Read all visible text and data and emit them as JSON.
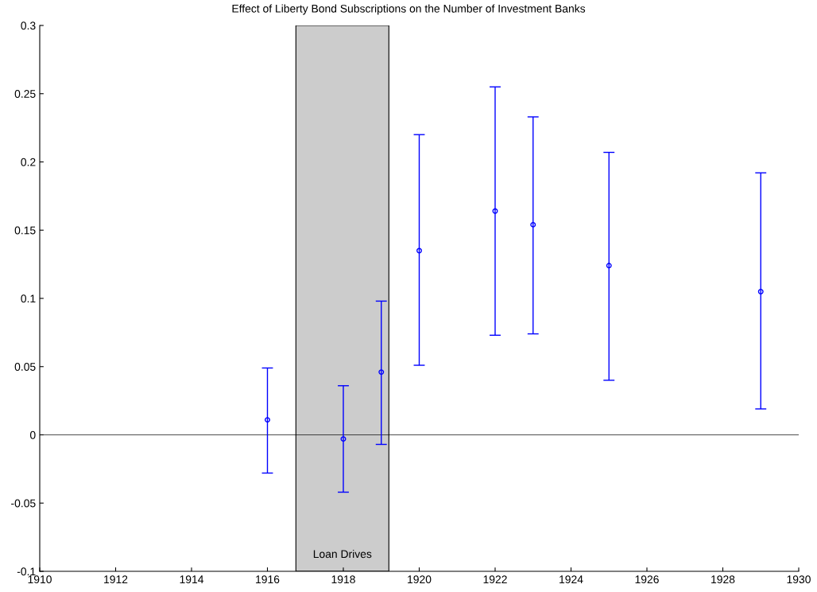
{
  "chart_data": {
    "type": "scatter",
    "title": "Effect of Liberty Bond Subscriptions on the Number of Investment Banks",
    "x": [
      1916,
      1918,
      1919,
      1920,
      1922,
      1923,
      1925,
      1929
    ],
    "series": [
      {
        "color": "#0000ff",
        "values": [
          0.011,
          -0.003,
          0.046,
          0.135,
          0.164,
          0.154,
          0.124,
          0.105
        ],
        "errors": [
          [
            -0.028,
            0.049
          ],
          [
            -0.042,
            0.036
          ],
          [
            -0.007,
            0.098
          ],
          [
            0.051,
            0.22
          ],
          [
            0.073,
            0.255
          ],
          [
            0.074,
            0.233
          ],
          [
            0.04,
            0.207
          ],
          [
            0.019,
            0.192
          ]
        ]
      }
    ],
    "xlim": [
      1910,
      1930
    ],
    "xticks": [
      1910,
      1912,
      1914,
      1916,
      1918,
      1920,
      1922,
      1924,
      1926,
      1928,
      1930
    ],
    "ylim": [
      -0.1,
      0.3
    ],
    "yticks": [
      -0.1,
      -0.05,
      0,
      0.05,
      0.1,
      0.15,
      0.2,
      0.25,
      0.3
    ],
    "ref_lines": [
      {
        "axis": "y",
        "value": 0,
        "color": "#000000",
        "line_style": "solid"
      }
    ],
    "bands": [
      {
        "axis": "x",
        "from": 1916.75,
        "to": 1919.2,
        "label": "Loan Drives",
        "color": "#cccccc"
      }
    ],
    "marker": "circle",
    "grid": false
  }
}
